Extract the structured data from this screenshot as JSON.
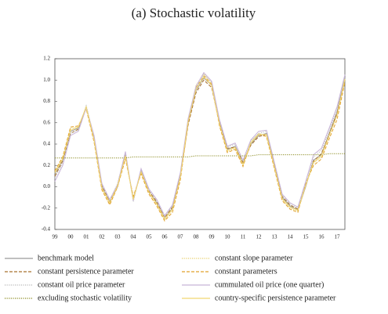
{
  "chart_data": {
    "type": "line",
    "title": "(a) Stochastic volatility",
    "categories": [
      "99",
      null,
      "00",
      null,
      "01",
      null,
      "02",
      null,
      "03",
      null,
      "04",
      null,
      "05",
      null,
      "06",
      null,
      "07",
      null,
      "08",
      null,
      "09",
      null,
      "10",
      null,
      "11",
      null,
      "12",
      null,
      "13",
      null,
      "14",
      null,
      "15",
      null,
      "16",
      null,
      "17",
      null
    ],
    "ylim": [
      -0.4,
      1.2
    ],
    "yticks": [
      1.2,
      {
        "value": 1.0,
        "label": "1.0"
      },
      0.8,
      0.6,
      0.4,
      0.2,
      {
        "value": 0.0,
        "label": "0.0"
      },
      -0.2,
      -0.4
    ],
    "grid": false,
    "series": [
      {
        "name": "benchmark model",
        "color": "#9a9a9a",
        "style": "solid",
        "values": [
          0.12,
          0.25,
          0.52,
          0.55,
          0.75,
          0.45,
          0.0,
          -0.15,
          0.0,
          0.3,
          -0.12,
          0.15,
          -0.05,
          -0.15,
          -0.3,
          -0.2,
          0.1,
          0.6,
          0.9,
          1.02,
          0.95,
          0.6,
          0.35,
          0.38,
          0.22,
          0.4,
          0.48,
          0.5,
          0.2,
          -0.1,
          -0.18,
          -0.22,
          0.0,
          0.25,
          0.3,
          0.5,
          0.7,
          1.02
        ]
      },
      {
        "name": "constant slope parameter",
        "color": "#e6cf6a",
        "style": "dotted",
        "values": [
          0.14,
          0.27,
          0.55,
          0.56,
          0.74,
          0.43,
          -0.02,
          -0.16,
          0.02,
          0.28,
          -0.1,
          0.13,
          -0.06,
          -0.17,
          -0.31,
          -0.22,
          0.08,
          0.62,
          0.95,
          1.06,
          0.97,
          0.58,
          0.33,
          0.36,
          0.2,
          0.42,
          0.5,
          0.48,
          0.18,
          -0.12,
          -0.2,
          -0.23,
          0.02,
          0.22,
          0.28,
          0.48,
          0.68,
          1.0
        ]
      },
      {
        "name": "constant persistence parameter",
        "color": "#a8702e",
        "style": "dashed",
        "values": [
          0.1,
          0.24,
          0.5,
          0.54,
          0.74,
          0.46,
          0.01,
          -0.14,
          0.01,
          0.29,
          -0.11,
          0.14,
          -0.04,
          -0.14,
          -0.29,
          -0.19,
          0.1,
          0.58,
          0.88,
          1.0,
          0.93,
          0.6,
          0.36,
          0.37,
          0.23,
          0.39,
          0.47,
          0.49,
          0.21,
          -0.09,
          -0.17,
          -0.21,
          0.01,
          0.24,
          0.31,
          0.49,
          0.69,
          1.0
        ]
      },
      {
        "name": "constant parameters",
        "color": "#e0a02c",
        "style": "dashed",
        "values": [
          0.15,
          0.28,
          0.56,
          0.57,
          0.73,
          0.42,
          -0.03,
          -0.17,
          0.0,
          0.26,
          -0.09,
          0.12,
          -0.07,
          -0.18,
          -0.32,
          -0.24,
          0.06,
          0.6,
          0.93,
          1.04,
          0.96,
          0.57,
          0.32,
          0.35,
          0.19,
          0.41,
          0.49,
          0.47,
          0.17,
          -0.13,
          -0.21,
          -0.24,
          0.03,
          0.2,
          0.26,
          0.45,
          0.63,
          0.98
        ]
      },
      {
        "name": "constant oil price parameter",
        "color": "#b8b8b8",
        "style": "dotted",
        "values": [
          0.08,
          0.22,
          0.5,
          0.53,
          0.76,
          0.47,
          0.02,
          -0.13,
          0.03,
          0.32,
          -0.14,
          0.16,
          -0.03,
          -0.13,
          -0.28,
          -0.18,
          0.12,
          0.63,
          0.92,
          1.05,
          0.98,
          0.62,
          0.37,
          0.4,
          0.24,
          0.43,
          0.5,
          0.52,
          0.22,
          -0.08,
          -0.16,
          -0.2,
          0.04,
          0.28,
          0.34,
          0.53,
          0.73,
          1.04
        ]
      },
      {
        "name": "cummulated oil price (one quarter)",
        "color": "#c8b4d8",
        "style": "solid",
        "values": [
          0.05,
          0.2,
          0.48,
          0.52,
          0.74,
          0.48,
          0.03,
          -0.12,
          0.02,
          0.33,
          -0.13,
          0.17,
          -0.02,
          -0.12,
          -0.27,
          -0.17,
          0.13,
          0.64,
          0.94,
          1.07,
          0.99,
          0.63,
          0.38,
          0.41,
          0.25,
          0.44,
          0.52,
          0.53,
          0.23,
          -0.07,
          -0.15,
          -0.19,
          0.05,
          0.3,
          0.36,
          0.55,
          0.75,
          1.05
        ]
      },
      {
        "name": "excluding stochastic volatility",
        "color": "#8a8a1e",
        "style": "dotted",
        "values": [
          0.27,
          0.27,
          0.27,
          0.27,
          0.27,
          0.27,
          0.27,
          0.27,
          0.27,
          0.27,
          0.28,
          0.28,
          0.28,
          0.28,
          0.28,
          0.28,
          0.28,
          0.28,
          0.29,
          0.29,
          0.29,
          0.29,
          0.29,
          0.29,
          0.29,
          0.29,
          0.3,
          0.3,
          0.3,
          0.3,
          0.3,
          0.3,
          0.3,
          0.3,
          0.3,
          0.31,
          0.31,
          0.31
        ]
      },
      {
        "name": "country-specific persistence parameter",
        "color": "#f2d872",
        "style": "solid",
        "values": [
          0.13,
          0.26,
          0.53,
          0.56,
          0.75,
          0.44,
          -0.01,
          -0.15,
          0.01,
          0.29,
          -0.12,
          0.14,
          -0.05,
          -0.16,
          -0.3,
          -0.21,
          0.09,
          0.61,
          0.91,
          1.03,
          0.95,
          0.59,
          0.34,
          0.37,
          0.21,
          0.41,
          0.49,
          0.49,
          0.19,
          -0.11,
          -0.19,
          -0.22,
          0.01,
          0.23,
          0.29,
          0.48,
          0.67,
          1.01
        ]
      }
    ]
  }
}
